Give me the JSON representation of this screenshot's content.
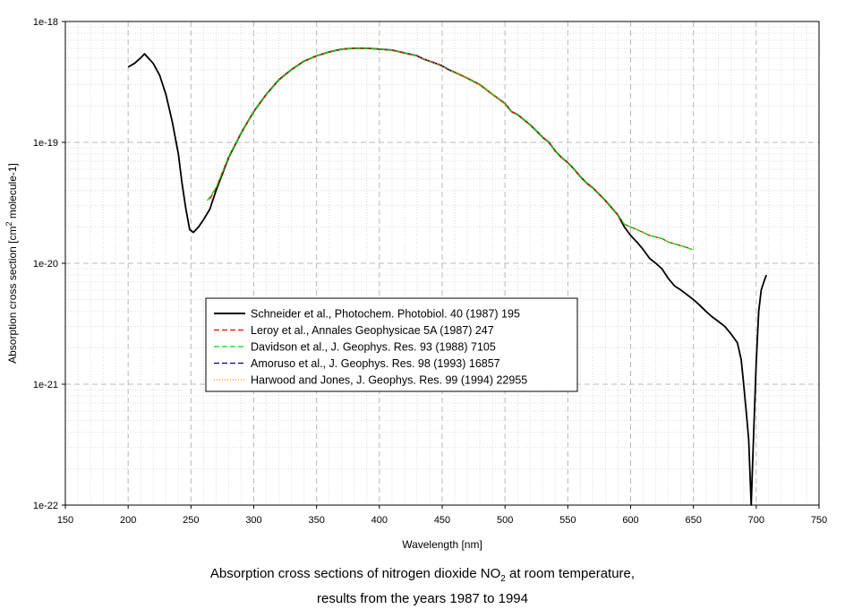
{
  "chart_data": {
    "type": "line",
    "xlabel": "Wavelength [nm]",
    "ylabel": {
      "prefix": "Absorption cross section [cm",
      "superscript": "2",
      "suffix": "  molecule-1]"
    },
    "xlim": [
      150,
      750
    ],
    "ylim": [
      1e-22,
      1e-18
    ],
    "y_scale": "log",
    "grid": true,
    "x_ticks": [
      "150",
      "200",
      "250",
      "300",
      "350",
      "400",
      "450",
      "500",
      "550",
      "600",
      "650",
      "700",
      "750"
    ],
    "y_ticks": [
      "1e-18",
      "1e-19",
      "1e-20",
      "1e-21",
      "1e-22"
    ],
    "legend_position": "center-left",
    "series": [
      {
        "name": "Schneider et al., Photochem. Photobiol. 40 (1987) 195",
        "color": "#000000",
        "dash": "solid",
        "x": [
          200,
          205,
          210,
          213,
          216,
          220,
          225,
          230,
          235,
          240,
          243,
          246,
          249,
          252,
          256,
          260,
          265,
          270,
          280,
          290,
          300,
          310,
          320,
          330,
          340,
          350,
          360,
          370,
          380,
          390,
          400,
          410,
          420,
          430,
          435,
          440,
          445,
          450,
          455,
          460,
          465,
          470,
          480,
          490,
          500,
          505,
          510,
          520,
          530,
          535,
          540,
          545,
          550,
          555,
          560,
          565,
          570,
          580,
          590,
          595,
          600,
          605,
          610,
          615,
          620,
          625,
          630,
          635,
          640,
          645,
          650,
          655,
          660,
          665,
          670,
          675,
          680,
          685,
          688,
          690,
          692,
          694,
          696,
          698,
          700,
          702,
          704,
          706,
          708
        ],
        "y": [
          4.2e-19,
          4.5e-19,
          5e-19,
          5.4e-19,
          5e-19,
          4.5e-19,
          3.6e-19,
          2.5e-19,
          1.5e-19,
          8e-20,
          4.5e-20,
          2.8e-20,
          1.9e-20,
          1.8e-20,
          2e-20,
          2.3e-20,
          2.8e-20,
          4e-20,
          7.5e-20,
          1.2e-19,
          1.8e-19,
          2.5e-19,
          3.3e-19,
          4e-19,
          4.7e-19,
          5.2e-19,
          5.6e-19,
          5.9e-19,
          6e-19,
          6e-19,
          5.9e-19,
          5.8e-19,
          5.5e-19,
          5.2e-19,
          4.9e-19,
          4.7e-19,
          4.5e-19,
          4.3e-19,
          4e-19,
          3.8e-19,
          3.6e-19,
          3.4e-19,
          3e-19,
          2.5e-19,
          2.1e-19,
          1.8e-19,
          1.7e-19,
          1.4e-19,
          1.1e-19,
          1e-19,
          8.5e-20,
          7.5e-20,
          6.8e-20,
          6e-20,
          5.2e-20,
          4.6e-20,
          4.2e-20,
          3.3e-20,
          2.5e-20,
          2e-20,
          1.7e-20,
          1.5e-20,
          1.3e-20,
          1.1e-20,
          1e-20,
          9e-21,
          7.5e-21,
          6.5e-21,
          6e-21,
          5.5e-21,
          5e-21,
          4.5e-21,
          4e-21,
          3.6e-21,
          3.3e-21,
          3e-21,
          2.6e-21,
          2.2e-21,
          1.6e-21,
          1e-21,
          6e-22,
          3.5e-22,
          1e-22,
          4e-22,
          1.5e-21,
          4e-21,
          6e-21,
          7e-21,
          8e-21
        ]
      },
      {
        "name": "Leroy et al., Annales Geophysicae 5A (1987) 247",
        "color": "#ff0000",
        "dash": "dashed",
        "x": [
          265,
          270,
          280,
          290,
          300,
          310,
          320,
          330,
          340,
          350,
          360,
          370,
          380,
          390,
          400,
          410,
          420,
          430,
          435,
          440,
          445,
          450,
          455,
          460,
          465,
          470,
          480,
          490,
          500,
          505,
          510,
          520,
          530,
          535,
          540,
          545,
          550,
          555,
          560,
          565,
          570,
          580,
          590,
          595,
          600,
          605,
          610,
          615,
          620,
          625,
          630,
          635,
          640,
          645,
          648
        ],
        "y": [
          3.4e-20,
          4.2e-20,
          7.6e-20,
          1.2e-19,
          1.8e-19,
          2.5e-19,
          3.3e-19,
          4e-19,
          4.7e-19,
          5.2e-19,
          5.6e-19,
          5.9e-19,
          6e-19,
          6e-19,
          5.9e-19,
          5.8e-19,
          5.5e-19,
          5.2e-19,
          4.9e-19,
          4.7e-19,
          4.5e-19,
          4.3e-19,
          4e-19,
          3.8e-19,
          3.6e-19,
          3.4e-19,
          3e-19,
          2.5e-19,
          2.1e-19,
          1.8e-19,
          1.7e-19,
          1.4e-19,
          1.1e-19,
          1e-19,
          8.5e-20,
          7.5e-20,
          6.8e-20,
          6e-20,
          5.2e-20,
          4.6e-20,
          4.2e-20,
          3.3e-20,
          2.5e-20,
          2.1e-20,
          2e-20,
          1.9e-20,
          1.8e-20,
          1.7e-20,
          1.65e-20,
          1.6e-20,
          1.5e-20,
          1.45e-20,
          1.4e-20,
          1.35e-20,
          1.3e-20
        ]
      },
      {
        "name": "Davidson et al., J. Geophys. Res. 93 (1988) 7105",
        "color": "#00dd00",
        "dash": "dashed",
        "x": [
          263,
          270,
          280,
          290,
          300,
          310,
          320,
          330,
          340,
          350,
          360,
          370,
          380,
          390,
          400,
          410,
          420,
          430,
          435,
          440,
          445,
          450,
          455,
          460,
          465,
          470,
          480,
          490,
          500,
          505,
          510,
          520,
          530,
          535,
          540,
          545,
          550,
          555,
          560,
          565,
          570,
          580,
          590,
          595,
          600,
          605,
          610,
          615,
          620,
          625,
          630,
          635,
          640,
          645,
          649
        ],
        "y": [
          3.3e-20,
          4.2e-20,
          7.6e-20,
          1.2e-19,
          1.8e-19,
          2.5e-19,
          3.3e-19,
          4e-19,
          4.7e-19,
          5.2e-19,
          5.6e-19,
          5.9e-19,
          6e-19,
          6e-19,
          5.9e-19,
          5.8e-19,
          5.5e-19,
          5.2e-19,
          4.9e-19,
          4.7e-19,
          4.5e-19,
          4.3e-19,
          4e-19,
          3.8e-19,
          3.6e-19,
          3.4e-19,
          3e-19,
          2.5e-19,
          2.1e-19,
          1.8e-19,
          1.7e-19,
          1.4e-19,
          1.1e-19,
          1e-19,
          8.5e-20,
          7.5e-20,
          6.8e-20,
          6e-20,
          5.2e-20,
          4.6e-20,
          4.2e-20,
          3.3e-20,
          2.5e-20,
          2.1e-20,
          2e-20,
          1.9e-20,
          1.8e-20,
          1.7e-20,
          1.65e-20,
          1.6e-20,
          1.5e-20,
          1.45e-20,
          1.4e-20,
          1.35e-20,
          1.3e-20
        ]
      },
      {
        "name": "Amoruso et al., J. Geophys. Res. 98 (1993) 16857",
        "color": "#000080",
        "dash": "dashed",
        "x": [
          430,
          435,
          440,
          445,
          450,
          455,
          460
        ],
        "y": [
          5.2e-19,
          4.9e-19,
          4.7e-19,
          4.5e-19,
          4.3e-19,
          4e-19,
          3.8e-19
        ]
      },
      {
        "name": "Harwood and Jones, J. Geophys. Res. 99 (1994) 22955",
        "color": "#ff8800",
        "dash": "dotted",
        "x": [
          430,
          435,
          440,
          445,
          450,
          455,
          460,
          465,
          470,
          480,
          490,
          500
        ],
        "y": [
          5.2e-19,
          4.9e-19,
          4.7e-19,
          4.5e-19,
          4.3e-19,
          4e-19,
          3.8e-19,
          3.6e-19,
          3.4e-19,
          3e-19,
          2.5e-19,
          2.1e-19
        ]
      }
    ]
  },
  "caption": {
    "line1_prefix": "Absorption cross sections of nitrogen dioxide NO",
    "line1_sub": "2",
    "line1_suffix": " at room temperature,",
    "line2": "results from the years 1987 to 1994"
  }
}
